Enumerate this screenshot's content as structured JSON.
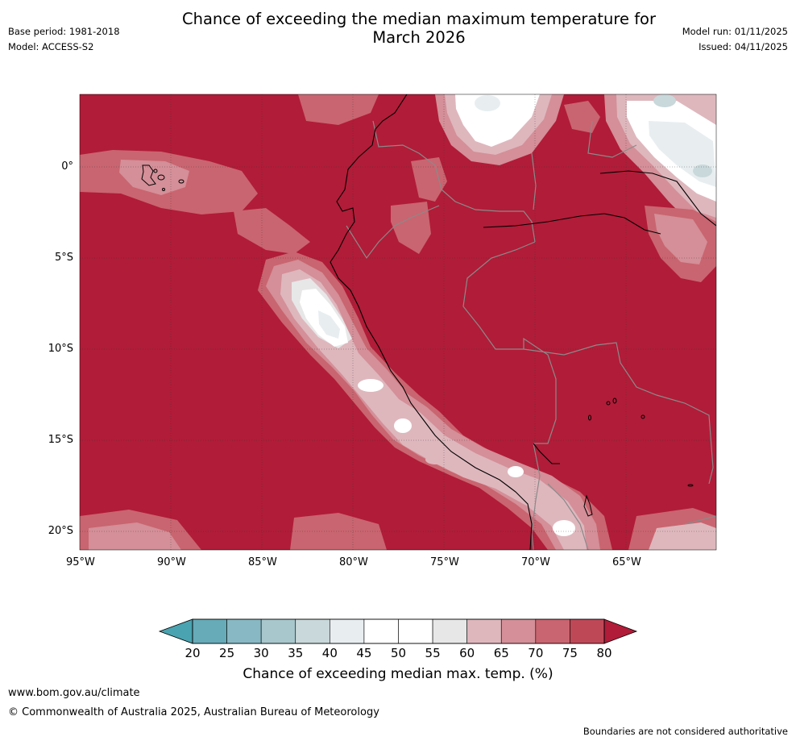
{
  "title": {
    "line1": "Chance of exceeding the median maximum temperature for",
    "line2": "March 2026"
  },
  "meta": {
    "base_period": "Base period: 1981-2018",
    "model": "Model: ACCESS-S2",
    "model_run": "Model run: 01/11/2025",
    "issued": "Issued: 04/11/2025"
  },
  "axes": {
    "lon_labels": [
      "95°W",
      "90°W",
      "85°W",
      "80°W",
      "75°W",
      "70°W",
      "65°W"
    ],
    "lat_labels": [
      "0°",
      "5°S",
      "10°S",
      "15°S",
      "20°S"
    ]
  },
  "colorbar": {
    "label": "Chance of exceeding median max. temp. (%)",
    "ticks": [
      "20",
      "25",
      "30",
      "35",
      "40",
      "45",
      "50",
      "55",
      "60",
      "65",
      "70",
      "75",
      "80"
    ],
    "colors": [
      "#67aab8",
      "#88b8c3",
      "#a7c7cc",
      "#c9d8da",
      "#e8eef0",
      "#ffffff",
      "#ffffff",
      "#e7e7e8",
      "#deb7bd",
      "#d48f98",
      "#c96570",
      "#bf4857",
      "#b11c38"
    ],
    "under_color": "#4aa3b0",
    "over_color": "#b11c38"
  },
  "footer": {
    "website": "www.bom.gov.au/climate",
    "copyright": "© Commonwealth of Australia 2025, Australian Bureau of Meteorology",
    "disclaimer": "Boundaries are not considered authoritative"
  }
}
